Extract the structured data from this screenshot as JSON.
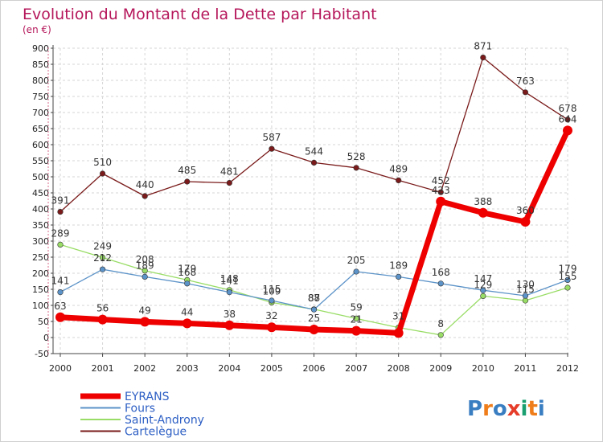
{
  "chart_data": {
    "type": "line",
    "title": "Evolution du Montant de la Dette par Habitant",
    "subtitle": "(en €)",
    "xlabel": "",
    "ylabel": "",
    "categories": [
      "2000",
      "2001",
      "2002",
      "2003",
      "2004",
      "2005",
      "2006",
      "2007",
      "2008",
      "2009",
      "2010",
      "2011",
      "2012"
    ],
    "ylim": [
      -50,
      900
    ],
    "yticks": [
      -50,
      0,
      50,
      100,
      150,
      200,
      250,
      300,
      350,
      400,
      450,
      500,
      550,
      600,
      650,
      700,
      750,
      800,
      850,
      900
    ],
    "grid": true,
    "legend_position": "bottom-left",
    "series": [
      {
        "name": "EYRANS",
        "color": "#ee0000",
        "values": [
          63,
          56,
          49,
          44,
          38,
          32,
          25,
          21,
          14,
          423,
          388,
          360,
          644
        ],
        "labels": [
          "63",
          "56",
          "49",
          "44",
          "38",
          "32",
          "25",
          "21",
          "",
          "423",
          "388",
          "360",
          "644"
        ]
      },
      {
        "name": "Fours",
        "color": "#5c93c8",
        "values": [
          141,
          212,
          189,
          168,
          141,
          115,
          87,
          205,
          189,
          168,
          147,
          130,
          179
        ],
        "labels": [
          "141",
          "212",
          "189",
          "168",
          "141",
          "115",
          "87",
          "205",
          "189",
          "168",
          "147",
          "130",
          "179"
        ]
      },
      {
        "name": "Saint-Androny",
        "color": "#99dd66",
        "values": [
          289,
          249,
          208,
          179,
          148,
          109,
          88,
          59,
          31,
          8,
          129,
          115,
          155
        ],
        "labels": [
          "289",
          "249",
          "208",
          "179",
          "148",
          "109",
          "88",
          "59",
          "31",
          "8",
          "129",
          "115",
          "155"
        ]
      },
      {
        "name": "Cartelègue",
        "color": "#7a1a1a",
        "values": [
          391,
          510,
          440,
          485,
          481,
          587,
          544,
          528,
          489,
          452,
          871,
          763,
          678
        ],
        "labels": [
          "391",
          "510",
          "440",
          "485",
          "481",
          "587",
          "544",
          "528",
          "489",
          "452",
          "871",
          "763",
          "678"
        ]
      }
    ]
  },
  "brand": {
    "logo_text": "Proxiti"
  }
}
